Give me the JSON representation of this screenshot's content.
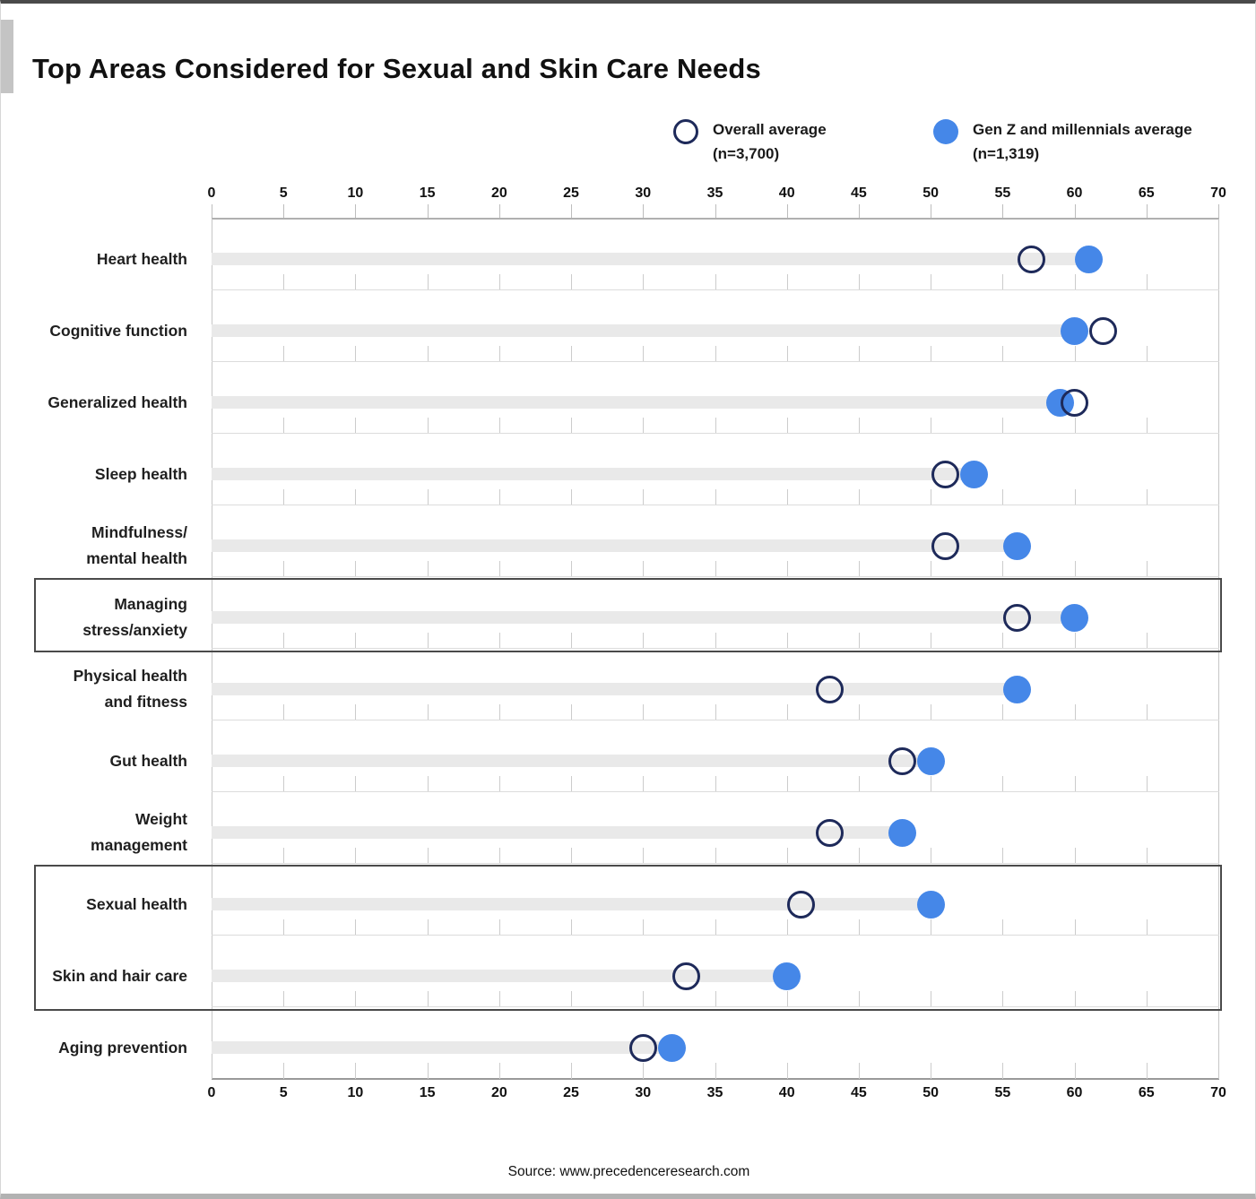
{
  "title": "Top Areas Considered for Sexual and Skin Care Needs",
  "legend": {
    "overall": {
      "label": "Overall average",
      "sub": "(n=3,700)"
    },
    "genz": {
      "label": "Gen Z and millennials average",
      "sub": "(n=1,319)"
    }
  },
  "source": "Source: www.precedenceresearch.com",
  "colors": {
    "genz_fill": "#4587e8",
    "overall_stroke": "#1e2a5a",
    "track": "#e9e9e9",
    "accent_bar": "#c4c4c4",
    "box_border": "#4a4a4a"
  },
  "chart_data": {
    "type": "scatter",
    "subtype": "dumbbell",
    "title": "Top Areas Considered for Sexual and Skin Care Needs",
    "categories": [
      "Heart health",
      "Cognitive function",
      "Generalized health",
      "Sleep health",
      "Mindfulness/\nmental health",
      "Managing\nstress/anxiety",
      "Physical health\nand fitness",
      "Gut health",
      "Weight\nmanagement",
      "Sexual health",
      "Skin and hair care",
      "Aging prevention"
    ],
    "series": [
      {
        "name": "Overall average (n=3,700)",
        "marker": "open-circle",
        "values": [
          57,
          62,
          60,
          51,
          51,
          56,
          43,
          48,
          43,
          41,
          33,
          30
        ]
      },
      {
        "name": "Gen Z and millennials average (n=1,319)",
        "marker": "filled-circle",
        "values": [
          61,
          60,
          59,
          53,
          56,
          60,
          56,
          50,
          48,
          50,
          40,
          32
        ]
      }
    ],
    "xlabel": "",
    "ylabel": "",
    "xlim": [
      0,
      70
    ],
    "xticks": [
      0,
      5,
      10,
      15,
      20,
      25,
      30,
      35,
      40,
      45,
      50,
      55,
      60,
      65,
      70
    ],
    "axis_positions": [
      "top",
      "bottom"
    ],
    "grid": "column-ticks-per-row",
    "legend_position": "top",
    "highlighted_row_groups": [
      {
        "start": 5,
        "count": 1
      },
      {
        "start": 9,
        "count": 2
      }
    ]
  }
}
